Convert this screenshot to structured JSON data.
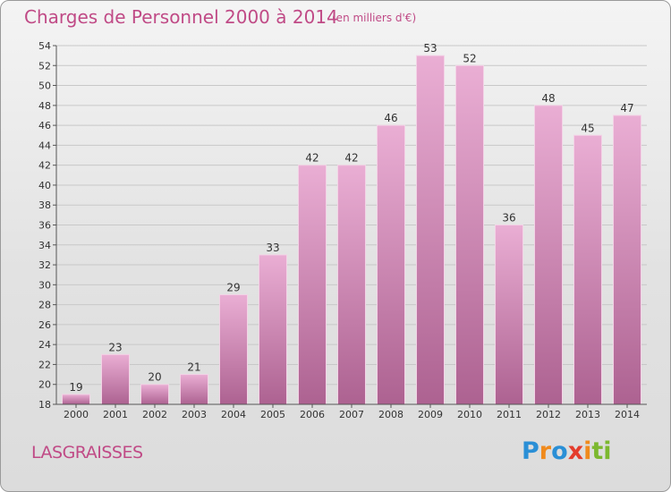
{
  "header": {
    "title": "Charges de Personnel 2000 à 2014",
    "subtitle": "(en milliers d'€)"
  },
  "commune": "LASGRAISSES",
  "logo": {
    "text": "Proxiti",
    "letters": [
      "P",
      "r",
      "o",
      "x",
      "i",
      "t",
      "i"
    ]
  },
  "colors": {
    "accent": "#c04a86",
    "bar_top": "#eaaed4",
    "bar_bottom": "#ad6291"
  },
  "chart_data": {
    "type": "bar",
    "categories": [
      "2000",
      "2001",
      "2002",
      "2003",
      "2004",
      "2005",
      "2006",
      "2007",
      "2008",
      "2009",
      "2010",
      "2011",
      "2012",
      "2013",
      "2014"
    ],
    "values": [
      19,
      23,
      20,
      21,
      29,
      33,
      42,
      42,
      46,
      53,
      52,
      36,
      48,
      45,
      47
    ],
    "ylim": [
      18,
      54
    ],
    "yticks": [
      18,
      20,
      22,
      24,
      26,
      28,
      30,
      32,
      34,
      36,
      38,
      40,
      42,
      44,
      46,
      48,
      50,
      52,
      54
    ],
    "grid": true
  }
}
